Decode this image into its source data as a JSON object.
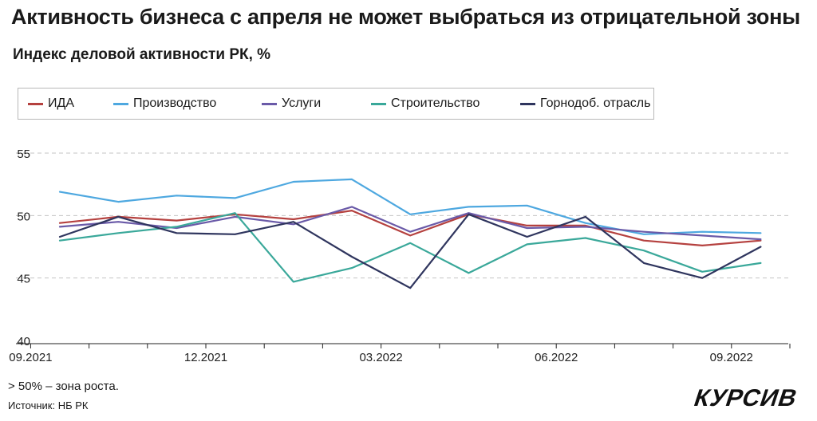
{
  "header": {
    "title": "Активность бизнеса с апреля не может выбраться из отрицательной зоны",
    "subtitle": "Индекс деловой активности РК, %"
  },
  "footer": {
    "note": "> 50% – зона роста.",
    "source": "Источник: НБ РК",
    "logo_text": "КУРСИВ"
  },
  "chart_data": {
    "type": "line",
    "title": "Индекс деловой активности РК, %",
    "xlabel": "",
    "ylabel": "",
    "ylim": [
      40,
      55
    ],
    "yticks": [
      40,
      45,
      50,
      55
    ],
    "grid": "dashed horizontal",
    "legend_position": "top",
    "x": [
      "09.2021",
      "10.2021",
      "11.2021",
      "12.2021",
      "01.2022",
      "02.2022",
      "03.2022",
      "04.2022",
      "05.2022",
      "06.2022",
      "07.2022",
      "08.2022",
      "09.2022"
    ],
    "xtick_labels": [
      "09.2021",
      "12.2021",
      "03.2022",
      "06.2022",
      "09.2022"
    ],
    "series": [
      {
        "name": "ИДА",
        "color": "#b5413f",
        "values": [
          49.4,
          49.9,
          49.6,
          50.1,
          49.7,
          50.4,
          48.4,
          50.1,
          49.2,
          49.2,
          48.0,
          47.6,
          48.0
        ]
      },
      {
        "name": "Производство",
        "color": "#4ea8e0",
        "values": [
          51.9,
          51.1,
          51.6,
          51.4,
          52.7,
          52.9,
          50.1,
          50.7,
          50.8,
          49.4,
          48.5,
          48.7,
          48.6
        ]
      },
      {
        "name": "Услуги",
        "color": "#6a5aa8",
        "values": [
          49.1,
          49.5,
          49.0,
          49.9,
          49.3,
          50.7,
          48.7,
          50.2,
          49.0,
          49.1,
          48.7,
          48.4,
          48.1
        ]
      },
      {
        "name": "Строительство",
        "color": "#3aa89a",
        "values": [
          48.0,
          48.6,
          49.1,
          50.2,
          44.7,
          45.8,
          47.8,
          45.4,
          47.7,
          48.2,
          47.2,
          45.5,
          46.2
        ]
      },
      {
        "name": "Горнодоб. отрасль",
        "color": "#2f355e",
        "values": [
          48.3,
          49.9,
          48.6,
          48.5,
          49.5,
          46.7,
          44.2,
          50.1,
          48.3,
          49.9,
          46.2,
          45.0,
          47.5
        ]
      }
    ]
  }
}
